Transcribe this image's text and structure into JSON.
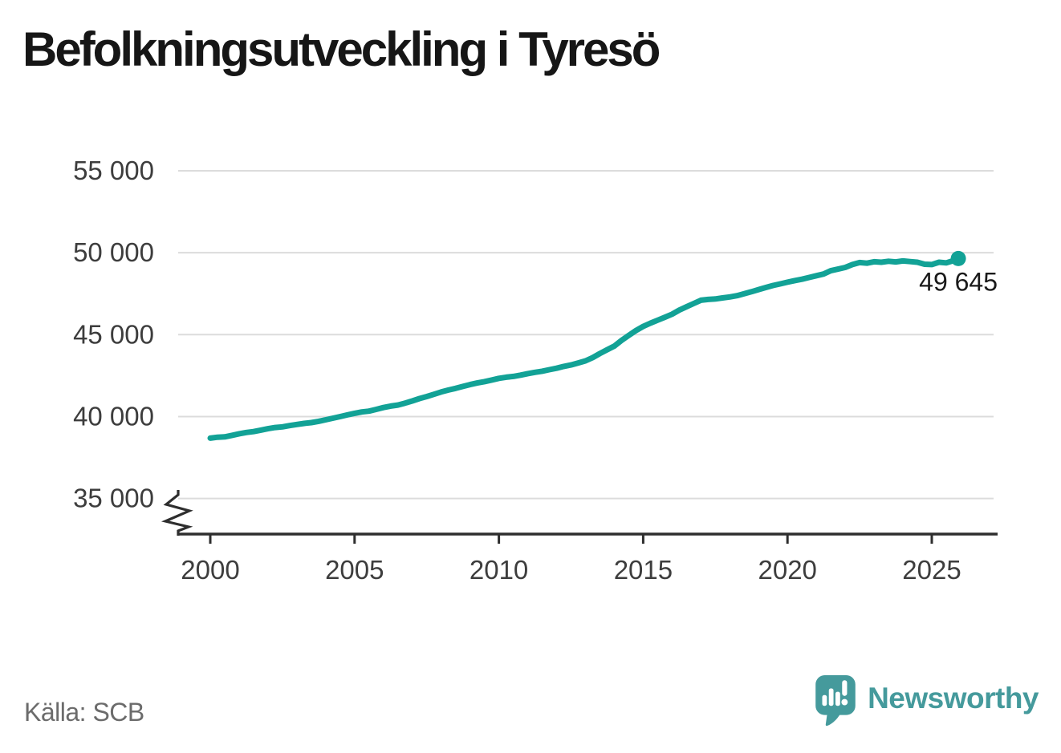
{
  "title": "Befolkningsutveckling i Tyresö",
  "source": "Källa: SCB",
  "brand": {
    "name": "Newsworthy",
    "color": "#459a9c"
  },
  "colors": {
    "line": "#12a296",
    "grid": "#dcdcdc",
    "axis": "#2e2e2e",
    "tick_text": "#3d3d3d",
    "end_label_text": "#1a1a1a"
  },
  "chart_data": {
    "type": "line",
    "title": "Befolkningsutveckling i Tyresö",
    "xlabel": "",
    "ylabel": "",
    "grid": "horizontal",
    "axis_break": true,
    "ylim": [
      35000,
      55000
    ],
    "xlim": [
      1998.9,
      2027.1
    ],
    "y_ticks": [
      {
        "value": 55000,
        "label": "55 000"
      },
      {
        "value": 50000,
        "label": "50 000"
      },
      {
        "value": 45000,
        "label": "45 000"
      },
      {
        "value": 40000,
        "label": "40 000"
      },
      {
        "value": 35000,
        "label": "35 000"
      }
    ],
    "x_ticks": [
      {
        "value": 2000,
        "label": "2000"
      },
      {
        "value": 2005,
        "label": "2005"
      },
      {
        "value": 2010,
        "label": "2010"
      },
      {
        "value": 2015,
        "label": "2015"
      },
      {
        "value": 2020,
        "label": "2020"
      },
      {
        "value": 2025,
        "label": "2025"
      }
    ],
    "end_label": "49 645",
    "latest_value": 49645,
    "series": [
      {
        "name": "Befolkning i Tyresö",
        "points": [
          [
            2000.0,
            38680
          ],
          [
            2000.25,
            38740
          ],
          [
            2000.5,
            38760
          ],
          [
            2000.75,
            38850
          ],
          [
            2001.0,
            38950
          ],
          [
            2001.25,
            39030
          ],
          [
            2001.5,
            39080
          ],
          [
            2001.75,
            39170
          ],
          [
            2002.0,
            39260
          ],
          [
            2002.25,
            39330
          ],
          [
            2002.5,
            39370
          ],
          [
            2002.75,
            39450
          ],
          [
            2003.0,
            39520
          ],
          [
            2003.25,
            39580
          ],
          [
            2003.5,
            39630
          ],
          [
            2003.75,
            39710
          ],
          [
            2004.0,
            39800
          ],
          [
            2004.25,
            39900
          ],
          [
            2004.5,
            40000
          ],
          [
            2004.75,
            40100
          ],
          [
            2005.0,
            40200
          ],
          [
            2005.25,
            40280
          ],
          [
            2005.5,
            40330
          ],
          [
            2005.75,
            40440
          ],
          [
            2006.0,
            40550
          ],
          [
            2006.25,
            40640
          ],
          [
            2006.5,
            40700
          ],
          [
            2006.75,
            40820
          ],
          [
            2007.0,
            40950
          ],
          [
            2007.25,
            41100
          ],
          [
            2007.5,
            41220
          ],
          [
            2007.75,
            41360
          ],
          [
            2008.0,
            41500
          ],
          [
            2008.25,
            41620
          ],
          [
            2008.5,
            41720
          ],
          [
            2008.75,
            41840
          ],
          [
            2009.0,
            41950
          ],
          [
            2009.25,
            42050
          ],
          [
            2009.5,
            42130
          ],
          [
            2009.75,
            42230
          ],
          [
            2010.0,
            42330
          ],
          [
            2010.25,
            42400
          ],
          [
            2010.5,
            42450
          ],
          [
            2010.75,
            42530
          ],
          [
            2011.0,
            42620
          ],
          [
            2011.25,
            42700
          ],
          [
            2011.5,
            42770
          ],
          [
            2011.75,
            42860
          ],
          [
            2012.0,
            42950
          ],
          [
            2012.25,
            43060
          ],
          [
            2012.5,
            43150
          ],
          [
            2012.75,
            43270
          ],
          [
            2013.0,
            43400
          ],
          [
            2013.25,
            43600
          ],
          [
            2013.5,
            43850
          ],
          [
            2013.75,
            44080
          ],
          [
            2014.0,
            44300
          ],
          [
            2014.25,
            44650
          ],
          [
            2014.5,
            44950
          ],
          [
            2014.75,
            45250
          ],
          [
            2015.0,
            45500
          ],
          [
            2015.25,
            45700
          ],
          [
            2015.5,
            45880
          ],
          [
            2015.75,
            46060
          ],
          [
            2016.0,
            46250
          ],
          [
            2016.25,
            46500
          ],
          [
            2016.5,
            46700
          ],
          [
            2016.75,
            46900
          ],
          [
            2017.0,
            47100
          ],
          [
            2017.25,
            47150
          ],
          [
            2017.5,
            47180
          ],
          [
            2017.75,
            47240
          ],
          [
            2018.0,
            47300
          ],
          [
            2018.25,
            47380
          ],
          [
            2018.5,
            47500
          ],
          [
            2018.75,
            47620
          ],
          [
            2019.0,
            47750
          ],
          [
            2019.25,
            47880
          ],
          [
            2019.5,
            48000
          ],
          [
            2019.75,
            48100
          ],
          [
            2020.0,
            48200
          ],
          [
            2020.25,
            48300
          ],
          [
            2020.5,
            48380
          ],
          [
            2020.75,
            48490
          ],
          [
            2021.0,
            48600
          ],
          [
            2021.25,
            48700
          ],
          [
            2021.5,
            48900
          ],
          [
            2021.75,
            49000
          ],
          [
            2022.0,
            49100
          ],
          [
            2022.25,
            49280
          ],
          [
            2022.5,
            49400
          ],
          [
            2022.75,
            49360
          ],
          [
            2023.0,
            49450
          ],
          [
            2023.25,
            49420
          ],
          [
            2023.5,
            49480
          ],
          [
            2023.75,
            49440
          ],
          [
            2024.0,
            49500
          ],
          [
            2024.25,
            49460
          ],
          [
            2024.5,
            49420
          ],
          [
            2024.75,
            49300
          ],
          [
            2025.0,
            49280
          ],
          [
            2025.25,
            49420
          ],
          [
            2025.5,
            49380
          ],
          [
            2025.75,
            49520
          ],
          [
            2025.92,
            49645
          ]
        ]
      }
    ]
  }
}
